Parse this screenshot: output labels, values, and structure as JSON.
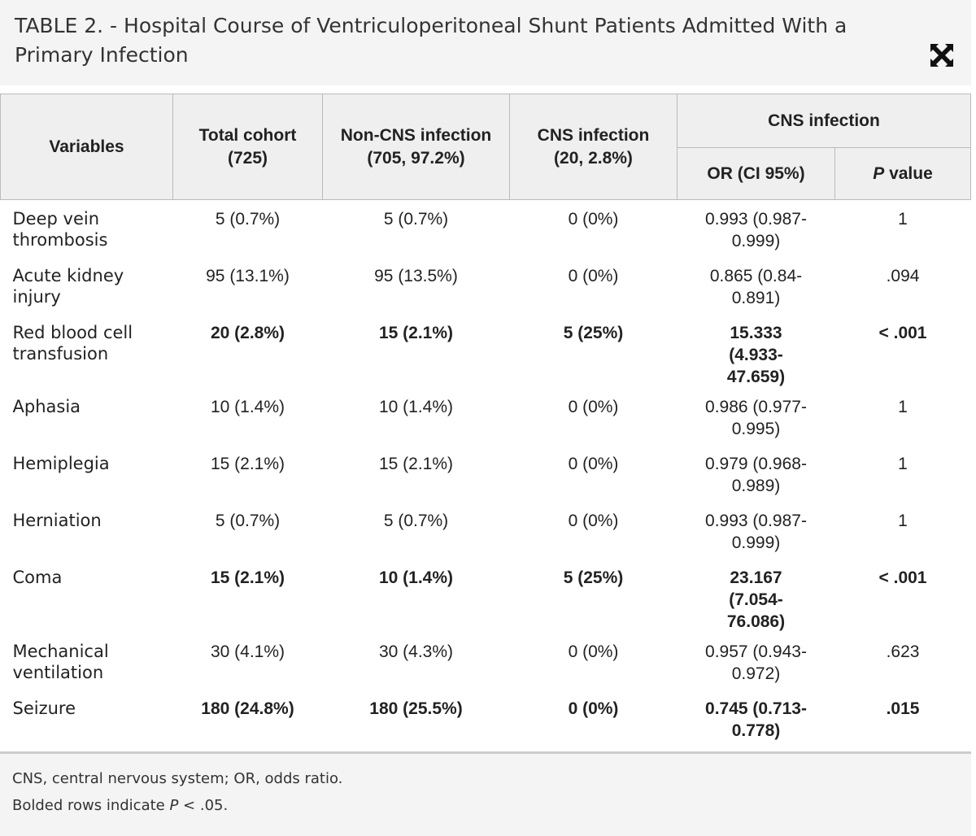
{
  "header": {
    "title": "TABLE 2. - Hospital Course of Ventriculoperitoneal Shunt Patients Admitted With a Primary Infection"
  },
  "table": {
    "columns": {
      "variables": "Variables",
      "total": [
        "Total cohort",
        "(725)"
      ],
      "non_cns": [
        "Non-CNS infection",
        "(705, 97.2%)"
      ],
      "cns": [
        "CNS infection",
        "(20, 2.8%)"
      ],
      "group": "CNS infection",
      "or": "OR (CI 95%)",
      "p": [
        "P",
        " value"
      ]
    },
    "rows": [
      {
        "cells": [
          "Deep vein thrombosis",
          "5 (0.7%)",
          "5 (0.7%)",
          "0 (0%)",
          "0.993 (0.987-0.999)",
          "1"
        ],
        "bold": false
      },
      {
        "cells": [
          "Acute kidney injury",
          "95 (13.1%)",
          "95 (13.5%)",
          "0 (0%)",
          "0.865 (0.84-0.891)",
          ".094"
        ],
        "bold": false
      },
      {
        "cells": [
          "Red blood cell transfusion",
          "20 (2.8%)",
          "15 (2.1%)",
          "5 (25%)",
          "15.333 (4.933-47.659)",
          "< .001"
        ],
        "bold": true
      },
      {
        "cells": [
          "Aphasia",
          "10 (1.4%)",
          "10 (1.4%)",
          "0 (0%)",
          "0.986 (0.977-0.995)",
          "1"
        ],
        "bold": false
      },
      {
        "cells": [
          "Hemiplegia",
          "15 (2.1%)",
          "15 (2.1%)",
          "0 (0%)",
          "0.979 (0.968-0.989)",
          "1"
        ],
        "bold": false
      },
      {
        "cells": [
          "Herniation",
          "5 (0.7%)",
          "5 (0.7%)",
          "0 (0%)",
          "0.993 (0.987-0.999)",
          "1"
        ],
        "bold": false
      },
      {
        "cells": [
          "Coma",
          "15 (2.1%)",
          "10 (1.4%)",
          "5 (25%)",
          "23.167 (7.054-76.086)",
          "< .001"
        ],
        "bold": true
      },
      {
        "cells": [
          "Mechanical ventilation",
          "30 (4.1%)",
          "30 (4.3%)",
          "0 (0%)",
          "0.957 (0.943-0.972)",
          ".623"
        ],
        "bold": false
      },
      {
        "cells": [
          "Seizure",
          "180 (24.8%)",
          "180 (25.5%)",
          "0 (0%)",
          "0.745 (0.713-0.778)",
          ".015"
        ],
        "bold": true
      }
    ]
  },
  "footer": {
    "note": "CNS, central nervous system; OR, odds ratio.",
    "bold_note": [
      "Bolded rows indicate ",
      "P",
      " < .05."
    ]
  }
}
